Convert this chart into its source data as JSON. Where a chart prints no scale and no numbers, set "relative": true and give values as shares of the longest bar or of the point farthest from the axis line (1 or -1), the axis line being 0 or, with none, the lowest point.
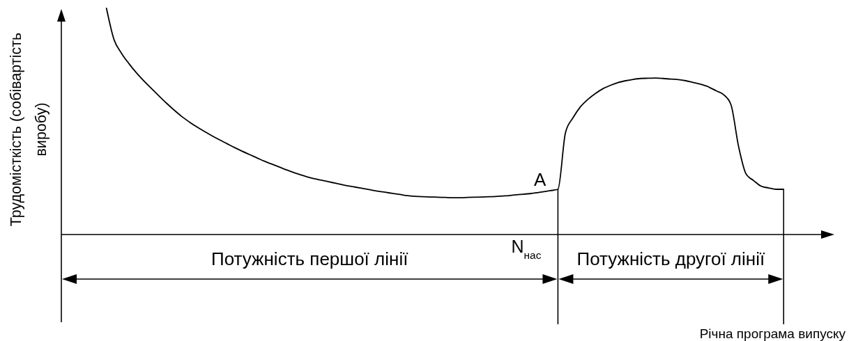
{
  "chart_data": {
    "type": "line",
    "relative": true,
    "ylabel": "Трудомісткість (собівартість виробу)",
    "categories": [
      null,
      null,
      null,
      null,
      null,
      null,
      null,
      null,
      null,
      null,
      null,
      null,
      null,
      null,
      null,
      null,
      null,
      null,
      null,
      null,
      null,
      null,
      null,
      null,
      null,
      null,
      null,
      null,
      null,
      null,
      null,
      null,
      null,
      null,
      null,
      null,
      null,
      null,
      null,
      null,
      null,
      null,
      null,
      null,
      null,
      null,
      null,
      null,
      null,
      null,
      null,
      null,
      null,
      null,
      null,
      null,
      null,
      null,
      null,
      null,
      null,
      null,
      null,
      null,
      null,
      null,
      null,
      null,
      null,
      null,
      null,
      null,
      null,
      null,
      null,
      null,
      null,
      null,
      null,
      null,
      null,
      null,
      null,
      null,
      null,
      null,
      null,
      null,
      null,
      null,
      null,
      null,
      null,
      null,
      null,
      null,
      null,
      null,
      null,
      null,
      null,
      null,
      null
    ],
    "values": [
      null,
      null,
      null,
      null,
      null,
      null,
      1,
      0.862,
      0.801,
      0.755,
      0.714,
      0.678,
      0.645,
      0.612,
      0.58,
      0.55,
      0.522,
      0.498,
      0.476,
      0.456,
      0.437,
      0.419,
      0.402,
      0.385,
      0.369,
      0.354,
      0.339,
      0.324,
      0.311,
      0.298,
      0.285,
      0.273,
      0.262,
      0.252,
      0.244,
      0.237,
      0.23,
      0.223,
      0.216,
      0.21,
      0.204,
      0.198,
      0.192,
      0.187,
      0.182,
      0.177,
      0.172,
      0.169,
      0.167,
      0.166,
      0.165,
      0.164,
      0.163,
      0.163,
      0.164,
      0.165,
      0.166,
      0.167,
      0.169,
      0.171,
      0.174,
      0.177,
      0.18,
      0.184,
      0.189,
      0.194,
      0.2,
      0.45,
      0.516,
      0.565,
      0.598,
      0.624,
      0.645,
      0.66,
      0.672,
      0.68,
      0.686,
      0.69,
      0.691,
      0.692,
      0.69,
      0.687,
      0.685,
      0.68,
      0.672,
      0.664,
      0.653,
      0.636,
      0.619,
      0.574,
      0.391,
      0.268,
      0.239,
      0.214,
      0.206,
      0.2,
      0.2,
      null,
      null,
      null,
      null,
      null,
      null
    ],
    "color": "#000000",
    "annotations": [
      {
        "text": "A",
        "y": 0.2
      },
      "N$_{нас}$",
      "Потужність першої лінії",
      "Потужність другої лінії",
      "Річна програма випуску"
    ]
  }
}
